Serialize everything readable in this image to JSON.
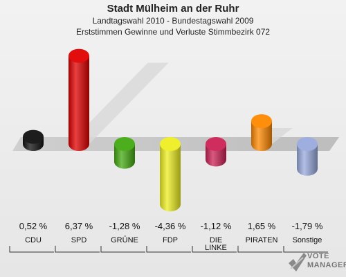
{
  "chart_data": {
    "type": "bar",
    "title": "Stadt Mülheim an der Ruhr",
    "subtitle": "Landtagswahl 2010 - Bundestagswahl 2009",
    "subtitle2": "Erststimmen Gewinne und Verluste Stimmbezirk 072",
    "categories": [
      "CDU",
      "SPD",
      "GRÜNE",
      "FDP",
      "DIE LINKE",
      "PIRATEN",
      "Sonstige"
    ],
    "values": [
      0.52,
      6.37,
      -1.28,
      -4.36,
      -1.12,
      1.65,
      -1.79
    ],
    "value_labels": [
      "0,52 %",
      "6,37 %",
      "-1,28 %",
      "-4,36 %",
      "-1,12 %",
      "1,65 %",
      "-1,79 %"
    ],
    "colors": [
      "#111111",
      "#e00000",
      "#44aa11",
      "#eeee22",
      "#cc2255",
      "#ff8800",
      "#99aadd"
    ],
    "xlabel": "",
    "ylabel": "",
    "grid": false
  },
  "logo": {
    "line1": "VOTE",
    "line2": "MANAGER"
  }
}
